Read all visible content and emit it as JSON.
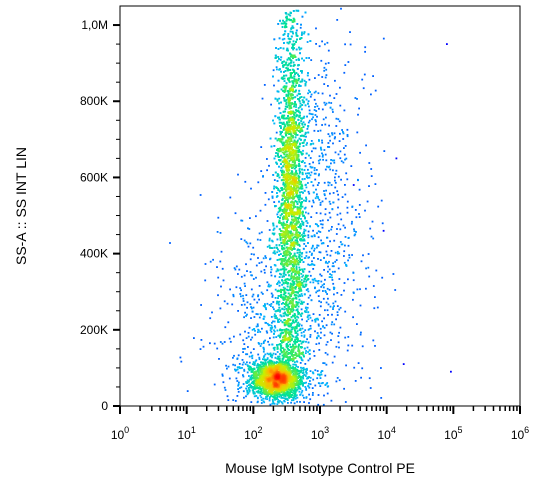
{
  "chart_data": {
    "type": "scatter",
    "subtype": "flow-cytometry-density-dot-plot",
    "xlabel": "Mouse IgM Isotype Control PE",
    "ylabel": "SS-A :: SS INT LIN",
    "x_scale": "log",
    "xlim": [
      1,
      1000000
    ],
    "ylim": [
      0,
      1050000
    ],
    "x_ticks": [
      {
        "value": 1,
        "base": "10",
        "exp": "0"
      },
      {
        "value": 10,
        "base": "10",
        "exp": "1"
      },
      {
        "value": 100,
        "base": "10",
        "exp": "2"
      },
      {
        "value": 1000,
        "base": "10",
        "exp": "3"
      },
      {
        "value": 10000,
        "base": "10",
        "exp": "4"
      },
      {
        "value": 100000,
        "base": "10",
        "exp": "5"
      },
      {
        "value": 1000000,
        "base": "10",
        "exp": "6"
      }
    ],
    "y_ticks": [
      {
        "value": 0,
        "label": "0"
      },
      {
        "value": 200000,
        "label": "200K"
      },
      {
        "value": 400000,
        "label": "400K"
      },
      {
        "value": 600000,
        "label": "600K"
      },
      {
        "value": 800000,
        "label": "800K"
      },
      {
        "value": 1000000,
        "label": "1,0M"
      }
    ],
    "grid": false,
    "color_scale": [
      "#0000ff",
      "#00b4ff",
      "#00e68c",
      "#c8f000",
      "#ffb400",
      "#ff0000"
    ],
    "populations": [
      {
        "x_center": 220,
        "x_log_spread": 0.16,
        "y_center": 70000,
        "y_spread": 24000,
        "points": 2200
      },
      {
        "x_center": 360,
        "x_log_spread": 0.09,
        "y_center": 560000,
        "y_spread": 260000,
        "points": 5200,
        "y_min": 120000,
        "y_max": 1040000
      },
      {
        "x_center": 900,
        "x_log_spread": 0.3,
        "y_center": 550000,
        "y_spread": 230000,
        "points": 700
      },
      {
        "x_center": 280,
        "x_log_spread": 0.45,
        "y_center": 200000,
        "y_spread": 150000,
        "points": 900
      }
    ],
    "outliers": [
      {
        "x": 80000,
        "y": 950000
      },
      {
        "x": 18000,
        "y": 110000
      },
      {
        "x": 92000,
        "y": 90000
      },
      {
        "x": 3200,
        "y": 580000
      },
      {
        "x": 9000,
        "y": 460000
      },
      {
        "x": 14000,
        "y": 650000
      }
    ]
  }
}
